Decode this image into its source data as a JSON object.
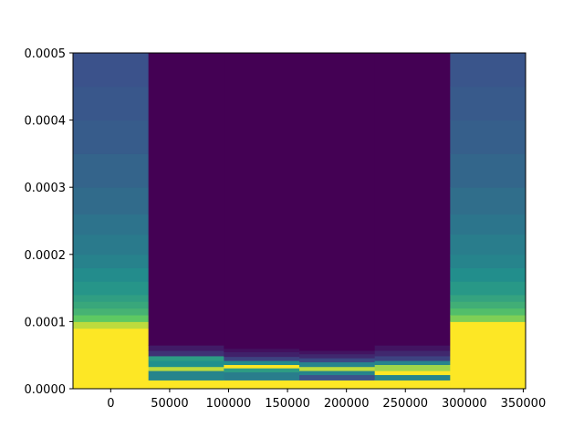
{
  "chart_data": {
    "type": "heatmap",
    "title": "",
    "xlabel": "",
    "ylabel": "",
    "xlim": [
      -32000,
      352000
    ],
    "ylim": [
      0,
      0.0005
    ],
    "x_ticks": [
      {
        "value": 0,
        "label": "0"
      },
      {
        "value": 50000,
        "label": "50000"
      },
      {
        "value": 100000,
        "label": "100000"
      },
      {
        "value": 150000,
        "label": "150000"
      },
      {
        "value": 200000,
        "label": "200000"
      },
      {
        "value": 250000,
        "label": "250000"
      },
      {
        "value": 300000,
        "label": "300000"
      },
      {
        "value": 350000,
        "label": "350000"
      }
    ],
    "y_ticks": [
      {
        "value": 0.0,
        "label": "0.0000"
      },
      {
        "value": 0.0001,
        "label": "0.0001"
      },
      {
        "value": 0.0002,
        "label": "0.0002"
      },
      {
        "value": 0.0003,
        "label": "0.0003"
      },
      {
        "value": 0.0004,
        "label": "0.0004"
      },
      {
        "value": 0.0005,
        "label": "0.0005"
      }
    ],
    "grid": false,
    "colormap": "viridis",
    "colormap_stops": [
      "#440154",
      "#3b528b",
      "#21918c",
      "#5ec962",
      "#fde725"
    ],
    "columns": [
      {
        "x0": -32000,
        "x1": 32000,
        "cells": [
          {
            "y0": 0.0,
            "y1": 9e-05,
            "value": 1.0
          },
          {
            "y0": 9e-05,
            "y1": 0.0001,
            "value": 0.9
          },
          {
            "y0": 0.0001,
            "y1": 0.00011,
            "value": 0.75
          },
          {
            "y0": 0.00011,
            "y1": 0.00012,
            "value": 0.65
          },
          {
            "y0": 0.00012,
            "y1": 0.00013,
            "value": 0.6
          },
          {
            "y0": 0.00013,
            "y1": 0.00014,
            "value": 0.56
          },
          {
            "y0": 0.00014,
            "y1": 0.00016,
            "value": 0.52
          },
          {
            "y0": 0.00016,
            "y1": 0.00018,
            "value": 0.48
          },
          {
            "y0": 0.00018,
            "y1": 0.0002,
            "value": 0.44
          },
          {
            "y0": 0.0002,
            "y1": 0.00023,
            "value": 0.41
          },
          {
            "y0": 0.00023,
            "y1": 0.00026,
            "value": 0.38
          },
          {
            "y0": 0.00026,
            "y1": 0.0003,
            "value": 0.35
          },
          {
            "y0": 0.0003,
            "y1": 0.00035,
            "value": 0.32
          },
          {
            "y0": 0.00035,
            "y1": 0.0004,
            "value": 0.29
          },
          {
            "y0": 0.0004,
            "y1": 0.00045,
            "value": 0.27
          },
          {
            "y0": 0.00045,
            "y1": 0.0005,
            "value": 0.25
          }
        ]
      },
      {
        "x0": 32000,
        "x1": 96000,
        "cells": [
          {
            "y0": 0.0,
            "y1": 1.3e-05,
            "value": 1.0
          },
          {
            "y0": 1.3e-05,
            "y1": 2.7e-05,
            "value": 0.45
          },
          {
            "y0": 2.7e-05,
            "y1": 3.3e-05,
            "value": 0.9
          },
          {
            "y0": 3.3e-05,
            "y1": 4.2e-05,
            "value": 0.5
          },
          {
            "y0": 4.2e-05,
            "y1": 4.9e-05,
            "value": 0.55
          },
          {
            "y0": 4.9e-05,
            "y1": 5.7e-05,
            "value": 0.15
          },
          {
            "y0": 5.7e-05,
            "y1": 6.5e-05,
            "value": 0.08
          },
          {
            "y0": 6.5e-05,
            "y1": 0.0005,
            "value": 0.0
          }
        ]
      },
      {
        "x0": 96000,
        "x1": 160000,
        "cells": [
          {
            "y0": 0.0,
            "y1": 1.3e-05,
            "value": 1.0
          },
          {
            "y0": 1.3e-05,
            "y1": 2.5e-05,
            "value": 0.42
          },
          {
            "y0": 2.5e-05,
            "y1": 3.1e-05,
            "value": 0.55
          },
          {
            "y0": 3.1e-05,
            "y1": 3.6e-05,
            "value": 1.0
          },
          {
            "y0": 3.6e-05,
            "y1": 4.2e-05,
            "value": 0.48
          },
          {
            "y0": 4.2e-05,
            "y1": 4.8e-05,
            "value": 0.2
          },
          {
            "y0": 4.8e-05,
            "y1": 5.5e-05,
            "value": 0.1
          },
          {
            "y0": 5.5e-05,
            "y1": 6e-05,
            "value": 0.05
          },
          {
            "y0": 6e-05,
            "y1": 0.0005,
            "value": 0.0
          }
        ]
      },
      {
        "x0": 160000,
        "x1": 224000,
        "cells": [
          {
            "y0": 0.0,
            "y1": 1.3e-05,
            "value": 1.0
          },
          {
            "y0": 1.3e-05,
            "y1": 2.1e-05,
            "value": 0.25
          },
          {
            "y0": 2.1e-05,
            "y1": 2.7e-05,
            "value": 0.45
          },
          {
            "y0": 2.7e-05,
            "y1": 3.3e-05,
            "value": 0.9
          },
          {
            "y0": 3.3e-05,
            "y1": 4e-05,
            "value": 0.45
          },
          {
            "y0": 4e-05,
            "y1": 4.6e-05,
            "value": 0.22
          },
          {
            "y0": 4.6e-05,
            "y1": 5.2e-05,
            "value": 0.12
          },
          {
            "y0": 5.2e-05,
            "y1": 5.7e-05,
            "value": 0.06
          },
          {
            "y0": 5.7e-05,
            "y1": 0.0005,
            "value": 0.0
          }
        ]
      },
      {
        "x0": 224000,
        "x1": 288000,
        "cells": [
          {
            "y0": 0.0,
            "y1": 1.3e-05,
            "value": 1.0
          },
          {
            "y0": 1.3e-05,
            "y1": 2.1e-05,
            "value": 0.45
          },
          {
            "y0": 2.1e-05,
            "y1": 2.7e-05,
            "value": 1.0
          },
          {
            "y0": 2.7e-05,
            "y1": 3.6e-05,
            "value": 0.85
          },
          {
            "y0": 3.6e-05,
            "y1": 4.2e-05,
            "value": 0.45
          },
          {
            "y0": 4.2e-05,
            "y1": 4.9e-05,
            "value": 0.2
          },
          {
            "y0": 4.9e-05,
            "y1": 5.7e-05,
            "value": 0.12
          },
          {
            "y0": 5.7e-05,
            "y1": 6.5e-05,
            "value": 0.06
          },
          {
            "y0": 6.5e-05,
            "y1": 0.0005,
            "value": 0.0
          }
        ]
      },
      {
        "x0": 288000,
        "x1": 352000,
        "cells": [
          {
            "y0": 0.0,
            "y1": 0.0001,
            "value": 1.0
          },
          {
            "y0": 0.0001,
            "y1": 0.00011,
            "value": 0.8
          },
          {
            "y0": 0.00011,
            "y1": 0.00012,
            "value": 0.7
          },
          {
            "y0": 0.00012,
            "y1": 0.00013,
            "value": 0.63
          },
          {
            "y0": 0.00013,
            "y1": 0.00014,
            "value": 0.58
          },
          {
            "y0": 0.00014,
            "y1": 0.00016,
            "value": 0.53
          },
          {
            "y0": 0.00016,
            "y1": 0.00018,
            "value": 0.49
          },
          {
            "y0": 0.00018,
            "y1": 0.0002,
            "value": 0.45
          },
          {
            "y0": 0.0002,
            "y1": 0.00023,
            "value": 0.42
          },
          {
            "y0": 0.00023,
            "y1": 0.00026,
            "value": 0.39
          },
          {
            "y0": 0.00026,
            "y1": 0.0003,
            "value": 0.36
          },
          {
            "y0": 0.0003,
            "y1": 0.00035,
            "value": 0.33
          },
          {
            "y0": 0.00035,
            "y1": 0.0004,
            "value": 0.3
          },
          {
            "y0": 0.0004,
            "y1": 0.00045,
            "value": 0.28
          },
          {
            "y0": 0.00045,
            "y1": 0.0005,
            "value": 0.26
          }
        ]
      }
    ]
  }
}
